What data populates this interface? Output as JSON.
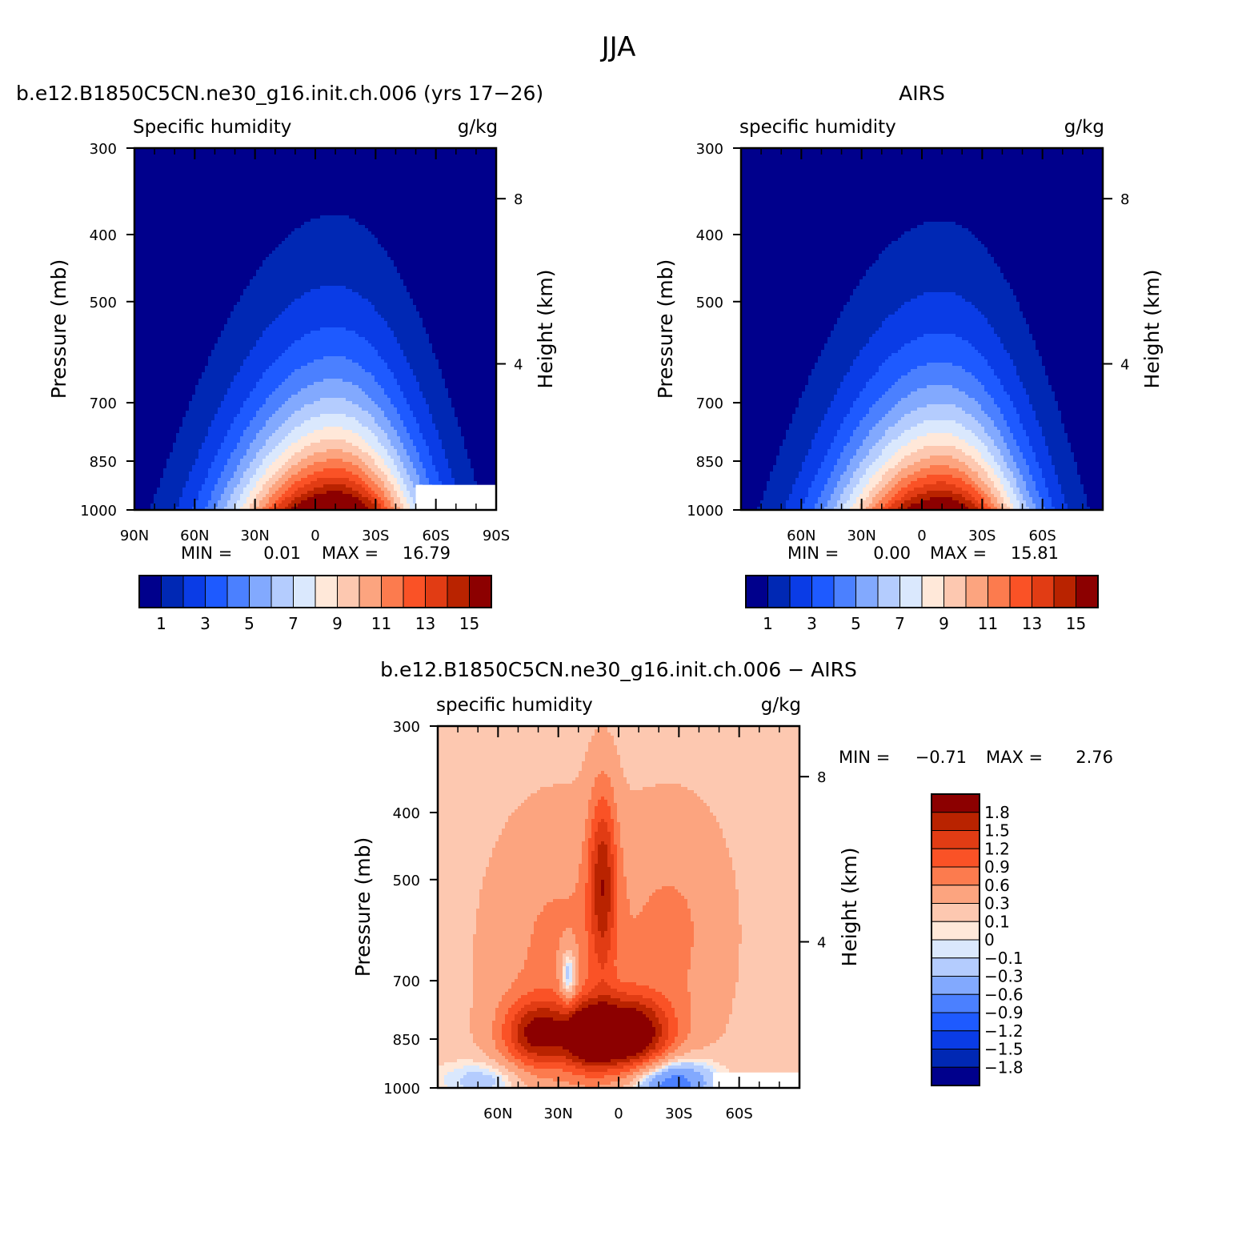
{
  "figure": {
    "title": "JJA"
  },
  "colors": {
    "absolute_scale": [
      "#00008c",
      "#0028b4",
      "#0a3ce6",
      "#1e5aff",
      "#4b80ff",
      "#82a9fe",
      "#b4ccfe",
      "#dae8fd",
      "#ffe8d9",
      "#fdc8b0",
      "#fca47f",
      "#fc7b4e",
      "#fa5226",
      "#e13c14",
      "#b92300",
      "#8c0000"
    ],
    "difference_scale": [
      "#00008c",
      "#0028b4",
      "#0a3ce6",
      "#1e5aff",
      "#4b80ff",
      "#82a9fe",
      "#b4ccfe",
      "#dae8fd",
      "#ffe8d9",
      "#fdc8b0",
      "#fca47f",
      "#fc7b4e",
      "#fa5226",
      "#e13c14",
      "#b92300",
      "#8c0000"
    ]
  },
  "chart_data": [
    {
      "type": "heatmap",
      "title": "b.e12.B1850C5CN.ne30_g16.init.ch.006 (yrs 17−26)",
      "left_subtitle": "Specific humidity",
      "right_subtitle": "g/kg",
      "ylabel": "Pressure (mb)",
      "y2label": "Height (km)",
      "x_ticks": [
        "90N",
        "60N",
        "30N",
        "0",
        "30S",
        "60S",
        "90S"
      ],
      "y_ticks": [
        "300",
        "400",
        "500",
        "700",
        "850",
        "1000"
      ],
      "y2_ticks": [
        "8",
        "4"
      ],
      "xlim": [
        90,
        -90
      ],
      "ylim": [
        1000,
        300
      ],
      "y_scale": "log",
      "grid": false,
      "min_label": "MIN =",
      "min_value": "0.01",
      "max_label": "MAX =",
      "max_value": "16.79",
      "colorbar_labels": [
        "1",
        "3",
        "5",
        "7",
        "9",
        "11",
        "13",
        "15"
      ],
      "contour_levels": [
        1,
        2,
        3,
        4,
        5,
        6,
        7,
        8,
        9,
        10,
        11,
        12,
        13,
        14,
        15
      ],
      "peak_latitude": -10,
      "peak_value": 16.79
    },
    {
      "type": "heatmap",
      "title": "AIRS",
      "left_subtitle": "specific humidity",
      "right_subtitle": "g/kg",
      "ylabel": "Pressure (mb)",
      "y2label": "Height (km)",
      "x_ticks": [
        "60N",
        "30N",
        "0",
        "30S",
        "60S"
      ],
      "y_ticks": [
        "300",
        "400",
        "500",
        "700",
        "850",
        "1000"
      ],
      "y2_ticks": [
        "8",
        "4"
      ],
      "xlim": [
        90,
        -90
      ],
      "ylim": [
        1000,
        300
      ],
      "y_scale": "log",
      "grid": false,
      "min_label": "MIN =",
      "min_value": "0.00",
      "max_label": "MAX =",
      "max_value": "15.81",
      "colorbar_labels": [
        "1",
        "3",
        "5",
        "7",
        "9",
        "11",
        "13",
        "15"
      ],
      "contour_levels": [
        1,
        2,
        3,
        4,
        5,
        6,
        7,
        8,
        9,
        10,
        11,
        12,
        13,
        14,
        15
      ],
      "peak_latitude": -10,
      "peak_value": 15.81
    },
    {
      "type": "heatmap",
      "title": "b.e12.B1850C5CN.ne30_g16.init.ch.006 − AIRS",
      "left_subtitle": "specific humidity",
      "right_subtitle": "g/kg",
      "ylabel": "Pressure (mb)",
      "y2label": "Height (km)",
      "x_ticks": [
        "60N",
        "30N",
        "0",
        "30S",
        "60S"
      ],
      "y_ticks": [
        "300",
        "400",
        "500",
        "700",
        "850",
        "1000"
      ],
      "y2_ticks": [
        "8",
        "4"
      ],
      "xlim": [
        90,
        -90
      ],
      "ylim": [
        1000,
        300
      ],
      "y_scale": "log",
      "grid": false,
      "min_label": "MIN =",
      "min_value": "−0.71",
      "max_label": "MAX =",
      "max_value": "2.76",
      "colorbar_labels": [
        "1.8",
        "1.5",
        "1.2",
        "0.9",
        "0.6",
        "0.3",
        "0.1",
        "0",
        "−0.1",
        "−0.3",
        "−0.6",
        "−0.9",
        "−1.2",
        "−1.5",
        "−1.8"
      ],
      "contour_levels": [
        -1.8,
        -1.5,
        -1.2,
        -0.9,
        -0.6,
        -0.3,
        -0.1,
        0,
        0.1,
        0.3,
        0.6,
        0.9,
        1.2,
        1.5,
        1.8
      ]
    }
  ]
}
